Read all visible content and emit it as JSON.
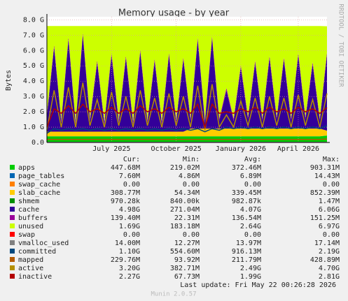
{
  "chart_data": {
    "type": "area",
    "title": "Memory usage - by year",
    "ylabel": "Bytes",
    "watermark": "RRDTOOL / TOBI OETIKER",
    "footer": "Last update: Fri May 22 00:26:28 2026",
    "version": "Munin 2.0.57",
    "grid": true,
    "ylim": [
      0,
      8.2
    ],
    "yticks": [
      {
        "value": 0,
        "label": "0.0"
      },
      {
        "value": 1,
        "label": "1.0 G"
      },
      {
        "value": 2,
        "label": "2.0 G"
      },
      {
        "value": 3,
        "label": "3.0 G"
      },
      {
        "value": 4,
        "label": "4.0 G"
      },
      {
        "value": 5,
        "label": "5.0 G"
      },
      {
        "value": 6,
        "label": "6.0 G"
      },
      {
        "value": 7,
        "label": "7.0 G"
      },
      {
        "value": 8,
        "label": "8.0 G"
      }
    ],
    "categories": [
      null,
      null,
      null,
      null,
      null,
      null,
      null,
      null,
      null,
      "July 2025",
      null,
      null,
      null,
      null,
      null,
      null,
      null,
      null,
      "October 2025",
      null,
      null,
      null,
      null,
      null,
      null,
      null,
      null,
      "January 2026",
      null,
      null,
      null,
      null,
      null,
      null,
      null,
      "April 2026",
      null,
      null,
      null,
      null
    ],
    "columns": [
      "Cur:",
      "Min:",
      "Avg:",
      "Max:"
    ],
    "series": [
      {
        "name": "apps",
        "color": "#00cc00",
        "style": "area",
        "stats": [
          "447.68M",
          "219.02M",
          "372.46M",
          "903.31M"
        ],
        "values": [
          0.4,
          0.4,
          0.4,
          0.4,
          0.4,
          0.4,
          0.4,
          0.4,
          0.4,
          0.4,
          0.4,
          0.4,
          0.4,
          0.4,
          0.4,
          0.4,
          0.4,
          0.4,
          0.4,
          0.4,
          0.4,
          0.4,
          0.4,
          0.4,
          0.4,
          0.4,
          0.4,
          0.4,
          0.4,
          0.4,
          0.4,
          0.4,
          0.4,
          0.4,
          0.4,
          0.4,
          0.4,
          0.4,
          0.4,
          0.448
        ]
      },
      {
        "name": "page_tables",
        "color": "#0066b3",
        "style": "area",
        "stats": [
          "7.60M",
          "4.86M",
          "6.89M",
          "14.43M"
        ],
        "values": [
          0.007,
          0.007,
          0.007,
          0.007,
          0.007,
          0.007,
          0.007,
          0.007,
          0.007,
          0.007,
          0.007,
          0.007,
          0.007,
          0.007,
          0.007,
          0.007,
          0.007,
          0.007,
          0.007,
          0.007,
          0.007,
          0.007,
          0.007,
          0.007,
          0.007,
          0.007,
          0.007,
          0.007,
          0.007,
          0.007,
          0.007,
          0.007,
          0.007,
          0.007,
          0.007,
          0.007,
          0.007,
          0.007,
          0.007,
          0.008
        ]
      },
      {
        "name": "swap_cache",
        "color": "#ff8000",
        "style": "area",
        "stats": [
          "0.00",
          "0.00",
          "0.00",
          "0.00"
        ],
        "values": [
          0,
          0,
          0,
          0,
          0,
          0,
          0,
          0,
          0,
          0,
          0,
          0,
          0,
          0,
          0,
          0,
          0,
          0,
          0,
          0,
          0,
          0,
          0,
          0,
          0,
          0,
          0,
          0,
          0,
          0,
          0,
          0,
          0,
          0,
          0,
          0,
          0,
          0,
          0,
          0
        ]
      },
      {
        "name": "slab_cache",
        "color": "#ffcc00",
        "style": "area",
        "stats": [
          "308.77M",
          "54.34M",
          "339.45M",
          "852.39M"
        ],
        "values": [
          0.3,
          0.3,
          0.3,
          0.3,
          0.3,
          0.3,
          0.3,
          0.3,
          0.3,
          0.3,
          0.3,
          0.3,
          0.3,
          0.3,
          0.3,
          0.3,
          0.3,
          0.3,
          0.3,
          0.3,
          0.5,
          0.5,
          0.5,
          0.5,
          0.5,
          0.5,
          0.5,
          0.5,
          0.5,
          0.5,
          0.5,
          0.5,
          0.5,
          0.5,
          0.5,
          0.5,
          0.5,
          0.5,
          0.5,
          0.31
        ]
      },
      {
        "name": "shmem",
        "color": "#008f00",
        "style": "area",
        "stats": [
          "970.28k",
          "840.00k",
          "982.87k",
          "1.47M"
        ],
        "values": [
          0.001,
          0.001,
          0.001,
          0.001,
          0.001,
          0.001,
          0.001,
          0.001,
          0.001,
          0.001,
          0.001,
          0.001,
          0.001,
          0.001,
          0.001,
          0.001,
          0.001,
          0.001,
          0.001,
          0.001,
          0.001,
          0.001,
          0.001,
          0.001,
          0.001,
          0.001,
          0.001,
          0.001,
          0.001,
          0.001,
          0.001,
          0.001,
          0.001,
          0.001,
          0.001,
          0.001,
          0.001,
          0.001,
          0.001,
          0.001
        ]
      },
      {
        "name": "cache",
        "color": "#330099",
        "style": "area",
        "stats": [
          "4.98G",
          "271.04M",
          "4.07G",
          "6.06G"
        ],
        "values": [
          1.0,
          5.5,
          0.6,
          6.0,
          0.5,
          6.3,
          0.7,
          4.5,
          0.5,
          5.0,
          0.6,
          4.8,
          0.5,
          5.2,
          0.6,
          4.6,
          0.5,
          5.0,
          0.6,
          4.7,
          0.5,
          5.8,
          0.4,
          5.9,
          0.5,
          2.5,
          0.5,
          4.0,
          0.6,
          4.3,
          0.5,
          4.6,
          0.6,
          4.5,
          0.5,
          4.8,
          0.6,
          4.2,
          0.5,
          4.98
        ]
      },
      {
        "name": "buffers",
        "color": "#990099",
        "style": "area",
        "stats": [
          "139.40M",
          "22.31M",
          "136.54M",
          "151.25M"
        ],
        "values": [
          0.14,
          0.14,
          0.14,
          0.14,
          0.14,
          0.14,
          0.14,
          0.14,
          0.14,
          0.14,
          0.14,
          0.14,
          0.14,
          0.14,
          0.14,
          0.14,
          0.14,
          0.14,
          0.14,
          0.14,
          0.14,
          0.14,
          0.14,
          0.14,
          0.14,
          0.14,
          0.14,
          0.14,
          0.14,
          0.14,
          0.14,
          0.14,
          0.14,
          0.14,
          0.14,
          0.14,
          0.14,
          0.14,
          0.14,
          0.14
        ]
      },
      {
        "name": "unused",
        "color": "#ccff00",
        "style": "area",
        "stats": [
          "1.69G",
          "183.18M",
          "2.64G",
          "6.97G"
        ],
        "values": [
          5.75,
          1.25,
          6.15,
          0.75,
          6.25,
          0.45,
          6.05,
          2.25,
          6.25,
          1.75,
          6.15,
          1.95,
          6.25,
          1.55,
          6.15,
          2.15,
          6.25,
          1.75,
          6.15,
          2.05,
          6.05,
          0.75,
          6.15,
          0.65,
          6.05,
          4.05,
          6.05,
          2.55,
          5.95,
          2.25,
          6.05,
          1.95,
          5.95,
          2.05,
          6.05,
          1.75,
          5.95,
          2.35,
          6.05,
          1.69
        ]
      },
      {
        "name": "swap",
        "color": "#ff0000",
        "style": "area",
        "stats": [
          "0.00",
          "0.00",
          "0.00",
          "0.00"
        ],
        "values": [
          0,
          0,
          0,
          0,
          0,
          0,
          0,
          0,
          0,
          0,
          0,
          0,
          0,
          0,
          0,
          0,
          0,
          0,
          0,
          0,
          0,
          0,
          0,
          0,
          0,
          0,
          0,
          0,
          0,
          0,
          0,
          0,
          0,
          0,
          0,
          0,
          0,
          0,
          0,
          0
        ]
      },
      {
        "name": "vmalloc_used",
        "color": "#808080",
        "style": "line",
        "stats": [
          "14.00M",
          "12.27M",
          "13.97M",
          "17.14M"
        ],
        "values": [
          0.014,
          0.014,
          0.014,
          0.014,
          0.014,
          0.014,
          0.014,
          0.014,
          0.014,
          0.014,
          0.014,
          0.014,
          0.014,
          0.014,
          0.014,
          0.014,
          0.014,
          0.014,
          0.014,
          0.014,
          0.014,
          0.014,
          0.014,
          0.014,
          0.014,
          0.014,
          0.014,
          0.014,
          0.014,
          0.014,
          0.014,
          0.014,
          0.014,
          0.014,
          0.014,
          0.014,
          0.014,
          0.014,
          0.014,
          0.014
        ]
      },
      {
        "name": "committed",
        "color": "#00487d",
        "style": "line",
        "stats": [
          "1.10G",
          "554.60M",
          "916.13M",
          "2.19G"
        ],
        "values": [
          0.6,
          0.9,
          0.8,
          0.9,
          0.8,
          0.9,
          0.8,
          0.9,
          0.8,
          0.9,
          0.8,
          0.9,
          0.8,
          0.9,
          0.8,
          0.9,
          0.8,
          0.9,
          0.8,
          0.9,
          0.8,
          0.9,
          0.7,
          0.9,
          0.8,
          1.0,
          0.9,
          1.0,
          0.9,
          1.0,
          0.9,
          1.0,
          0.9,
          1.0,
          0.9,
          1.0,
          0.9,
          1.0,
          0.9,
          1.1
        ]
      },
      {
        "name": "mapped",
        "color": "#b35a00",
        "style": "line",
        "stats": [
          "229.76M",
          "93.92M",
          "211.79M",
          "428.89M"
        ],
        "values": [
          0.2,
          0.2,
          0.2,
          0.2,
          0.2,
          0.2,
          0.2,
          0.2,
          0.2,
          0.2,
          0.2,
          0.2,
          0.2,
          0.2,
          0.2,
          0.2,
          0.2,
          0.2,
          0.2,
          0.2,
          0.2,
          0.2,
          0.2,
          0.2,
          0.2,
          0.2,
          0.2,
          0.2,
          0.2,
          0.2,
          0.2,
          0.2,
          0.2,
          0.2,
          0.2,
          0.2,
          0.2,
          0.2,
          0.2,
          0.23
        ]
      },
      {
        "name": "active",
        "color": "#b38f00",
        "style": "line",
        "stats": [
          "3.20G",
          "382.71M",
          "2.49G",
          "4.70G"
        ],
        "values": [
          0.8,
          3.4,
          1.0,
          3.6,
          1.0,
          3.9,
          1.1,
          2.8,
          1.0,
          3.3,
          1.1,
          3.0,
          1.0,
          3.4,
          1.1,
          2.9,
          1.0,
          3.2,
          1.1,
          3.0,
          1.0,
          3.7,
          0.8,
          3.8,
          1.0,
          1.8,
          1.0,
          2.7,
          1.1,
          2.9,
          1.0,
          3.0,
          1.1,
          2.9,
          1.0,
          3.1,
          1.1,
          2.8,
          1.0,
          3.2
        ]
      },
      {
        "name": "inactive",
        "color": "#b30000",
        "style": "line",
        "stats": [
          "2.27G",
          "67.73M",
          "1.99G",
          "2.81G"
        ],
        "values": [
          1.0,
          2.2,
          1.9,
          2.4,
          1.9,
          2.5,
          2.0,
          2.2,
          1.9,
          2.3,
          1.9,
          2.2,
          1.9,
          2.4,
          2.0,
          2.2,
          1.9,
          2.3,
          2.0,
          2.2,
          1.9,
          2.5,
          1.0,
          2.5,
          1.9,
          2.0,
          1.9,
          2.2,
          2.0,
          2.3,
          1.9,
          2.3,
          2.0,
          2.2,
          1.9,
          2.3,
          2.0,
          2.2,
          1.9,
          2.27
        ]
      }
    ]
  }
}
